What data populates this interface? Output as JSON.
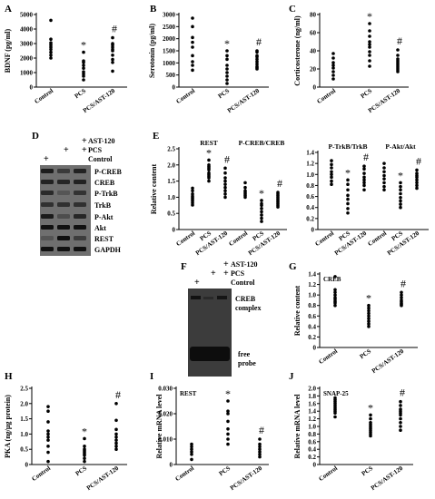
{
  "panel_letters": [
    "A",
    "B",
    "C",
    "D",
    "E",
    "F",
    "G",
    "H",
    "I",
    "J"
  ],
  "colors": {
    "dots": "#000000",
    "axes": "#000000",
    "blot_bg": "#7a7a7a"
  },
  "chart_data": [
    {
      "id": "A",
      "type": "scatter",
      "ylabel": "BDNF (pg/ml)",
      "categories": [
        "Control",
        "PCS",
        "PCS/AST-120"
      ],
      "yticks": [
        "0",
        "1000",
        "2000",
        "3000",
        "4000",
        "5000"
      ],
      "ylim": [
        0,
        5000
      ],
      "marks": [
        "",
        "*",
        "#"
      ],
      "values": [
        [
          4600,
          3300,
          3050,
          2900,
          2750,
          2600,
          2400,
          2200,
          2000
        ],
        [
          2400,
          1800,
          1700,
          1500,
          1300,
          1050,
          900,
          750,
          500
        ],
        [
          3400,
          3000,
          2900,
          2750,
          2600,
          2500,
          2200,
          1900,
          1700,
          1100
        ]
      ]
    },
    {
      "id": "B",
      "type": "scatter",
      "ylabel": "Serotonin (pg/ml)",
      "categories": [
        "Control",
        "PCS",
        "PCS/AST-120"
      ],
      "yticks": [
        "0",
        "500",
        "1000",
        "1500",
        "2000",
        "2500",
        "3000"
      ],
      "ylim": [
        0,
        3000
      ],
      "marks": [
        "",
        "*",
        "#"
      ],
      "values": [
        [
          2850,
          2500,
          2050,
          1850,
          1650,
          1300,
          1050,
          900,
          700
        ],
        [
          1500,
          1300,
          1150,
          900,
          750,
          600,
          450,
          300,
          150
        ],
        [
          1500,
          1450,
          1300,
          1250,
          1150,
          1050,
          950,
          850,
          800,
          750
        ]
      ]
    },
    {
      "id": "C",
      "type": "scatter",
      "ylabel": "Corticosterone (ng/ml)",
      "categories": [
        "Control",
        "PCS",
        "PCS/AST-120"
      ],
      "yticks": [
        "0",
        "20",
        "40",
        "60",
        "80"
      ],
      "ylim": [
        0,
        80
      ],
      "marks": [
        "",
        "*",
        "#"
      ],
      "values": [
        [
          37,
          32,
          27,
          24,
          21,
          17,
          13,
          9
        ],
        [
          70,
          62,
          56,
          50,
          47,
          44,
          39,
          35,
          29,
          23
        ],
        [
          41,
          35,
          31,
          29,
          27,
          25,
          23,
          21,
          19,
          17
        ]
      ]
    },
    {
      "id": "E",
      "type": "scatter",
      "ylabel": "Relative content",
      "group_titles": [
        "REST",
        "P-CREB/CREB"
      ],
      "yticks": [
        "0",
        "0.5",
        "1.0",
        "1.5",
        "2.0",
        "2.5"
      ],
      "ylim": [
        0,
        2.5
      ],
      "categories": [
        "Control",
        "PCS",
        "PCS/AST-120",
        "Control",
        "PCS",
        "PCS/AST-120"
      ],
      "marks": [
        "",
        "*",
        "#",
        "",
        "*",
        "#"
      ],
      "values": [
        [
          1.28,
          1.2,
          1.1,
          1.03,
          0.98,
          0.93,
          0.88,
          0.82,
          0.76
        ],
        [
          2.15,
          2.0,
          1.95,
          1.9,
          1.85,
          1.75,
          1.7,
          1.65,
          1.6,
          1.5
        ],
        [
          1.9,
          1.75,
          1.6,
          1.5,
          1.4,
          1.3,
          1.2,
          1.1,
          1.0
        ],
        [
          1.45,
          1.3,
          1.2,
          1.15,
          1.1,
          1.05,
          1.0
        ],
        [
          0.9,
          0.8,
          0.75,
          0.65,
          0.55,
          0.45,
          0.35,
          0.25
        ],
        [
          1.15,
          1.1,
          1.05,
          1.0,
          0.95,
          0.9,
          0.85,
          0.8,
          0.75,
          0.7
        ]
      ]
    },
    {
      "id": "E2",
      "type": "scatter",
      "ylabel": "",
      "group_titles": [
        "P-TrkB/TrkB",
        "P-Akt/Akt"
      ],
      "yticks": [
        "0",
        "0.2",
        "0.4",
        "0.6",
        "0.8",
        "1.0",
        "1.2",
        "1.4"
      ],
      "ylim": [
        0,
        1.4
      ],
      "categories": [
        "Control",
        "PCS",
        "PCS/AST-120",
        "Control",
        "PCS",
        "PCS/AST-120"
      ],
      "marks": [
        "",
        "*",
        "#",
        "",
        "*",
        "#"
      ],
      "values": [
        [
          1.25,
          1.18,
          1.12,
          1.05,
          1.0,
          0.95,
          0.88,
          0.82
        ],
        [
          0.9,
          0.82,
          0.72,
          0.62,
          0.55,
          0.47,
          0.38,
          0.3
        ],
        [
          1.15,
          1.1,
          1.02,
          0.95,
          0.9,
          0.85,
          0.8,
          0.72
        ],
        [
          1.2,
          1.12,
          1.05,
          0.98,
          0.92,
          0.85,
          0.78,
          0.72
        ],
        [
          0.85,
          0.78,
          0.72,
          0.65,
          0.58,
          0.52,
          0.46,
          0.4
        ],
        [
          1.08,
          1.02,
          0.98,
          0.95,
          0.9,
          0.85,
          0.8,
          0.75
        ]
      ]
    },
    {
      "id": "G",
      "type": "scatter",
      "ylabel": "Relative content",
      "group_titles": [
        "CREB"
      ],
      "categories": [
        "Control",
        "PCS",
        "PCS/AST-120"
      ],
      "yticks": [
        "0",
        "0.2",
        "0.4",
        "0.6",
        "0.8",
        "1.0",
        "1.2",
        "1.4"
      ],
      "ylim": [
        0,
        1.4
      ],
      "marks": [
        "",
        "*",
        "#"
      ],
      "values": [
        [
          1.35,
          1.1,
          1.05,
          1.0,
          0.95,
          0.92,
          0.88,
          0.85,
          0.8
        ],
        [
          0.8,
          0.75,
          0.7,
          0.65,
          0.6,
          0.55,
          0.5,
          0.45,
          0.4
        ],
        [
          1.05,
          1.0,
          0.95,
          0.9,
          0.87,
          0.84,
          0.82,
          0.8
        ]
      ]
    },
    {
      "id": "H",
      "type": "scatter",
      "ylabel": "PKA (ng/µg protein)",
      "categories": [
        "Control",
        "PCS",
        "PCS/AST-120"
      ],
      "yticks": [
        "0",
        "0.5",
        "1.0",
        "1.5",
        "2.0",
        "2.5"
      ],
      "ylim": [
        0,
        2.5
      ],
      "marks": [
        "",
        "*",
        "#"
      ],
      "values": [
        [
          1.9,
          1.75,
          1.4,
          1.1,
          1.0,
          0.9,
          0.8,
          0.6,
          0.4,
          0.1
        ],
        [
          0.85,
          0.6,
          0.5,
          0.45,
          0.4,
          0.35,
          0.3,
          0.2,
          0.1
        ],
        [
          2.0,
          1.45,
          1.15,
          1.0,
          0.9,
          0.8,
          0.7,
          0.6,
          0.5
        ]
      ]
    },
    {
      "id": "I",
      "type": "scatter",
      "ylabel": "Relative mRNA level",
      "group_titles": [
        "REST"
      ],
      "categories": [
        "Control",
        "PCS",
        "PCS/AST-120"
      ],
      "yticks": [
        "0",
        "0.010",
        "0.020",
        "0.030"
      ],
      "ylim": [
        0,
        0.03
      ],
      "marks": [
        "",
        "*",
        "#"
      ],
      "values": [
        [
          0.008,
          0.007,
          0.006,
          0.005,
          0.004,
          0.002
        ],
        [
          0.025,
          0.021,
          0.02,
          0.017,
          0.014,
          0.012,
          0.01,
          0.008
        ],
        [
          0.01,
          0.008,
          0.007,
          0.006,
          0.005,
          0.004,
          0.003
        ]
      ]
    },
    {
      "id": "J",
      "type": "scatter",
      "ylabel": "Relative mRNA level",
      "group_titles": [
        "SNAP-25"
      ],
      "categories": [
        "Control",
        "PCS",
        "PCS/AST-120"
      ],
      "yticks": [
        "0",
        "0.2",
        "0.4",
        "0.6",
        "0.8",
        "1.0",
        "1.2",
        "1.4",
        "1.6",
        "1.8",
        "2.0"
      ],
      "ylim": [
        0,
        2.0
      ],
      "marks": [
        "",
        "*",
        "#"
      ],
      "values": [
        [
          1.75,
          1.7,
          1.65,
          1.6,
          1.55,
          1.5,
          1.45,
          1.4,
          1.35,
          1.25
        ],
        [
          1.3,
          1.2,
          1.1,
          1.05,
          1.0,
          0.95,
          0.9,
          0.85,
          0.8,
          0.75
        ],
        [
          1.65,
          1.55,
          1.45,
          1.4,
          1.35,
          1.3,
          1.2,
          1.1,
          1.0,
          0.9
        ]
      ]
    }
  ],
  "blot_d": {
    "treatments": [
      "AST-120",
      "PCS",
      "Control"
    ],
    "lane_marks": [
      "+",
      "+",
      "+"
    ],
    "bands": [
      "P-CREB",
      "CREB",
      "P-TrkB",
      "TrkB",
      "P-Akt",
      "Akt",
      "REST",
      "GAPDH"
    ]
  },
  "blot_f": {
    "treatments": [
      "AST-120",
      "PCS",
      "Control"
    ],
    "lane_marks": [
      "+",
      "+",
      "+"
    ],
    "labels": [
      "CREB",
      "complex",
      "free",
      "probe"
    ]
  }
}
